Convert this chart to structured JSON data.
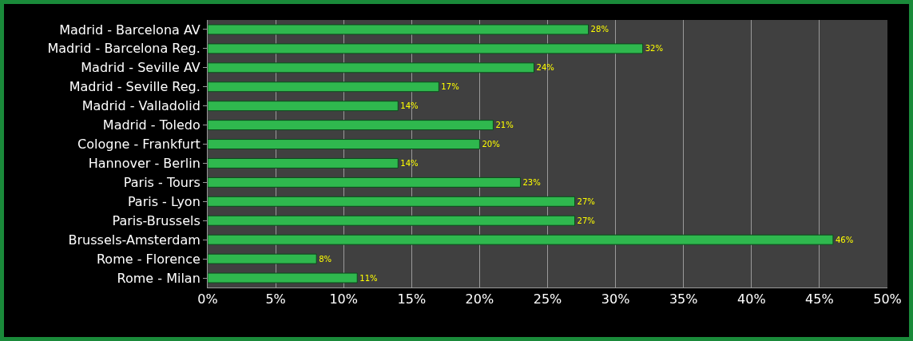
{
  "chart_data": {
    "type": "bar",
    "orientation": "horizontal",
    "categories": [
      "Madrid - Barcelona AV",
      "Madrid - Barcelona Reg.",
      "Madrid - Seville AV",
      "Madrid - Seville Reg.",
      "Madrid - Valladolid",
      "Madrid - Toledo",
      "Cologne - Frankfurt",
      "Hannover - Berlin",
      "Paris - Tours",
      "Paris - Lyon",
      "Paris-Brussels",
      "Brussels-Amsterdam",
      "Rome - Florence",
      "Rome - Milan"
    ],
    "values": [
      28,
      32,
      24,
      17,
      14,
      21,
      20,
      14,
      23,
      27,
      27,
      46,
      8,
      11
    ],
    "value_labels": [
      "28%",
      "32%",
      "24%",
      "17%",
      "14%",
      "21%",
      "20%",
      "14%",
      "23%",
      "27%",
      "27%",
      "46%",
      "8%",
      "11%"
    ],
    "color": "#2fb84e",
    "xlim": [
      0,
      50
    ],
    "xticks": [
      {
        "value": 0,
        "label": "0%"
      },
      {
        "value": 5,
        "label": "5%"
      },
      {
        "value": 10,
        "label": "10%"
      },
      {
        "value": 15,
        "label": "15%"
      },
      {
        "value": 20,
        "label": "20%"
      },
      {
        "value": 25,
        "label": "25%"
      },
      {
        "value": 30,
        "label": "30%"
      },
      {
        "value": 35,
        "label": "35%"
      },
      {
        "value": 40,
        "label": "40%"
      },
      {
        "value": 45,
        "label": "45%"
      },
      {
        "value": 50,
        "label": "50%"
      }
    ],
    "grid": "x",
    "legend": false
  }
}
